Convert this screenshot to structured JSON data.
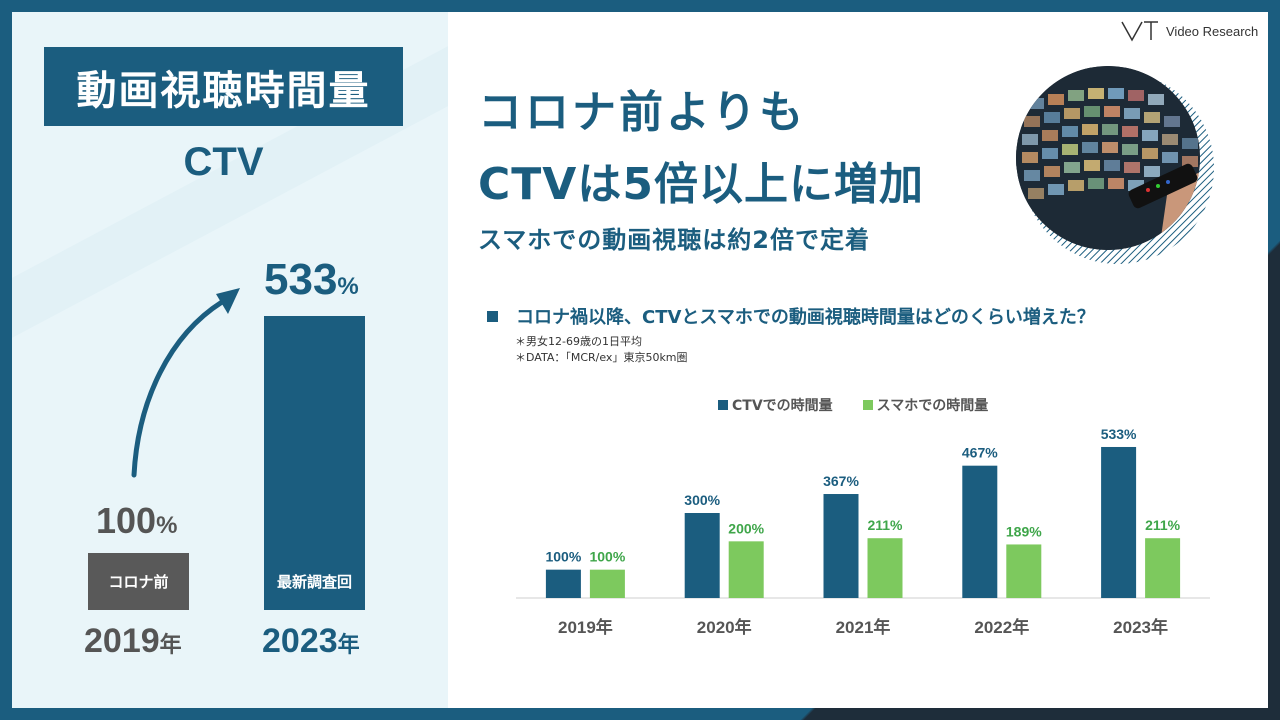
{
  "left": {
    "title": "動画視聴時間量",
    "subtitle": "CTV",
    "pct_2019": "100",
    "pct_2023": "533",
    "pct_unit": "%",
    "bar_2019_label": "コロナ前",
    "bar_2023_label": "最新調査回",
    "year_2019": "2019",
    "year_2023": "2023",
    "year_unit": "年"
  },
  "logo": {
    "text": "Video Research"
  },
  "headline": {
    "line1": "コロナ前よりも",
    "line2": "CTVは5倍以上に増加",
    "sub": "スマホでの動画視聴は約2倍で定着"
  },
  "question": "コロナ禍以降、CTVとスマホでの動画視聴時間量はどのくらい増えた？",
  "notes": [
    "＊男女12-69歳の1日平均",
    "＊DATA：「MCR/ex」東京50km圏"
  ],
  "colors": {
    "ctv": "#1b5d7f",
    "smartphone": "#7dc95e",
    "dark": "#1e2d3a"
  },
  "chart_data": {
    "type": "bar",
    "title": "",
    "categories": [
      "2019年",
      "2020年",
      "2021年",
      "2022年",
      "2023年"
    ],
    "series": [
      {
        "name": "CTVでの時間量",
        "values": [
          100,
          300,
          367,
          467,
          533
        ],
        "labels": [
          "100%",
          "300%",
          "367%",
          "467%",
          "533%"
        ]
      },
      {
        "name": "スマホでの時間量",
        "values": [
          100,
          200,
          211,
          189,
          211
        ],
        "labels": [
          "100%",
          "200%",
          "211%",
          "189%",
          "211%"
        ]
      }
    ],
    "ylim": [
      0,
      600
    ],
    "legend": "top-center"
  }
}
